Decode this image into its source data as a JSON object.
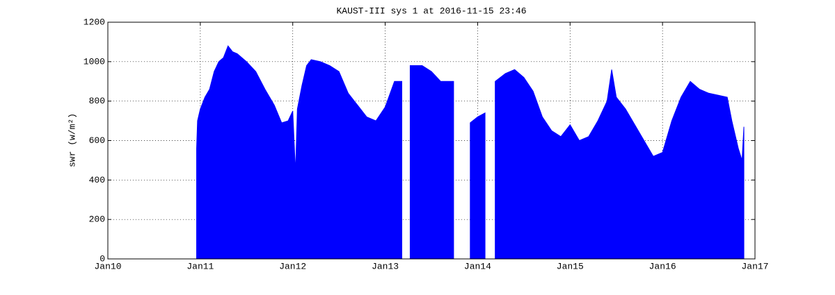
{
  "chart_data": {
    "type": "area",
    "title": "KAUST-III sys 1 at 2016-11-15 23:46",
    "y_label": "swr (w/m²)",
    "xlim": [
      2010,
      2017
    ],
    "xticks": [
      {
        "value": 2010,
        "label": "Jan10"
      },
      {
        "value": 2011,
        "label": "Jan11"
      },
      {
        "value": 2012,
        "label": "Jan12"
      },
      {
        "value": 2013,
        "label": "Jan13"
      },
      {
        "value": 2014,
        "label": "Jan14"
      },
      {
        "value": 2015,
        "label": "Jan15"
      },
      {
        "value": 2016,
        "label": "Jan16"
      },
      {
        "value": 2017,
        "label": "Jan17"
      }
    ],
    "ylim": [
      0,
      1200
    ],
    "yticks": [
      0,
      200,
      400,
      600,
      800,
      1000,
      1200
    ],
    "grid": true,
    "series": [
      {
        "color": "#0000ff",
        "x": [
          2010.96,
          2010.97,
          2011.0,
          2011.05,
          2011.1,
          2011.15,
          2011.2,
          2011.25,
          2011.3,
          2011.35,
          2011.4,
          2011.5,
          2011.6,
          2011.7,
          2011.8,
          2011.88,
          2011.95,
          2012.0,
          2012.03,
          2012.05,
          2012.1,
          2012.15,
          2012.2,
          2012.3,
          2012.4,
          2012.5,
          2012.6,
          2012.7,
          2012.8,
          2012.9,
          2013.0,
          2013.1,
          2013.18,
          2013.22,
          2013.27,
          2013.4,
          2013.5,
          2013.6,
          2013.74,
          2013.83,
          2013.92,
          2014.0,
          2014.08,
          2014.13,
          2014.19,
          2014.3,
          2014.4,
          2014.5,
          2014.6,
          2014.7,
          2014.8,
          2014.9,
          2015.0,
          2015.1,
          2015.2,
          2015.3,
          2015.4,
          2015.45,
          2015.5,
          2015.6,
          2015.7,
          2015.8,
          2015.9,
          2016.0,
          2016.1,
          2016.2,
          2016.3,
          2016.4,
          2016.5,
          2016.6,
          2016.7,
          2016.75,
          2016.8,
          2016.82,
          2016.86,
          2016.88
        ],
        "values": [
          560,
          700,
          760,
          820,
          860,
          950,
          1000,
          1020,
          1080,
          1050,
          1040,
          1000,
          950,
          860,
          780,
          690,
          700,
          750,
          440,
          760,
          880,
          980,
          1010,
          1000,
          980,
          950,
          840,
          780,
          720,
          700,
          770,
          900,
          900,
          null,
          980,
          980,
          950,
          900,
          900,
          null,
          690,
          720,
          740,
          null,
          900,
          940,
          960,
          920,
          850,
          720,
          650,
          620,
          680,
          600,
          620,
          700,
          800,
          960,
          820,
          760,
          680,
          600,
          520,
          540,
          700,
          820,
          900,
          860,
          840,
          830,
          820,
          700,
          600,
          560,
          500,
          670
        ]
      }
    ]
  }
}
